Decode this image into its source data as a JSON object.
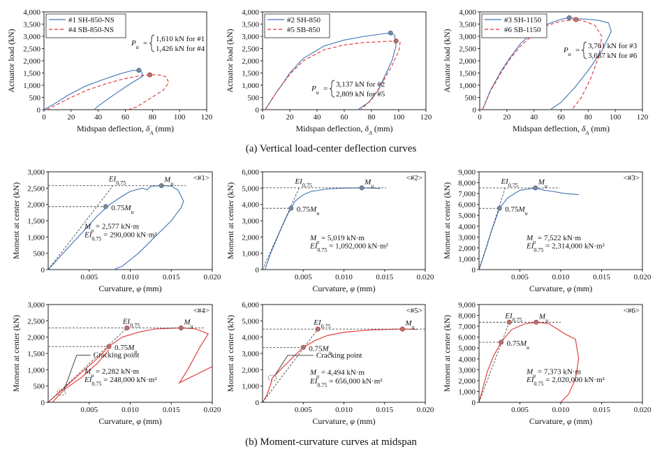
{
  "captions": {
    "a": "(a) Vertical load-center deflection curves",
    "b": "(b) Moment-curvature curves at midspan"
  },
  "colors": {
    "blue": "#3f72b4",
    "red": "#e03030"
  },
  "chart_data": [
    {
      "type": "line",
      "xlabel_main": "Midspan deflection, ",
      "xlabel_sym": "δ",
      "xlabel_sub": "A",
      "xlabel_unit": " (mm)",
      "ylabel": "Actuator load (kN)",
      "xlim": [
        0,
        120
      ],
      "ylim": [
        0,
        4000
      ],
      "xticks": [
        "0",
        "20",
        "40",
        "60",
        "80",
        "100",
        "120"
      ],
      "yticks": [
        "0",
        "500",
        "1,000",
        "1,500",
        "2,000",
        "2,500",
        "3,000",
        "3,500",
        "4,000"
      ],
      "legend": [
        "#1 SH-850-NS",
        "#4 SB-850-NS"
      ],
      "pu_label": "P",
      "pu_sub": "u",
      "pu_lines": [
        "1,610 kN for #1",
        "1,426 kN for #4"
      ],
      "series": [
        {
          "name": "#1 SH-850-NS",
          "color": "blue",
          "dash": false,
          "x": [
            0,
            8,
            18,
            30,
            42,
            55,
            65,
            70,
            72,
            73,
            62,
            50,
            40,
            37
          ],
          "y": [
            0,
            250,
            600,
            950,
            1200,
            1450,
            1600,
            1610,
            1550,
            1380,
            1000,
            550,
            150,
            0
          ],
          "marker": [
            70,
            1610
          ]
        },
        {
          "name": "#4 SB-850-NS",
          "color": "red",
          "dash": true,
          "x": [
            2,
            10,
            20,
            32,
            45,
            58,
            70,
            78,
            85,
            90,
            92,
            88,
            78,
            68,
            62
          ],
          "y": [
            0,
            220,
            500,
            800,
            1050,
            1250,
            1380,
            1426,
            1420,
            1350,
            1100,
            800,
            450,
            100,
            0
          ],
          "marker": [
            78,
            1426
          ]
        }
      ]
    },
    {
      "type": "line",
      "xlabel_main": "Midspan deflection, ",
      "xlabel_sym": "δ",
      "xlabel_sub": "A",
      "xlabel_unit": " (mm)",
      "ylabel": "Actuator load (kN)",
      "xlim": [
        0,
        120
      ],
      "ylim": [
        0,
        4000
      ],
      "xticks": [
        "0",
        "20",
        "40",
        "60",
        "80",
        "100",
        "120"
      ],
      "yticks": [
        "0",
        "500",
        "1,000",
        "1,500",
        "2,000",
        "2,500",
        "3,000",
        "3,500",
        "4,000"
      ],
      "legend": [
        "#2 SH-850",
        "#5 SB-850"
      ],
      "pu_label": "P",
      "pu_sub": "u",
      "pu_lines": [
        "3,137 kN for #2",
        "2,809 kN for #5"
      ],
      "series": [
        {
          "name": "#2 SH-850",
          "color": "blue",
          "dash": false,
          "x": [
            2,
            6,
            10,
            14,
            20,
            30,
            45,
            60,
            75,
            88,
            94,
            97,
            98,
            95,
            90,
            85,
            78,
            70
          ],
          "y": [
            0,
            350,
            700,
            1000,
            1500,
            2100,
            2600,
            2850,
            3000,
            3100,
            3137,
            3050,
            2600,
            2000,
            1400,
            800,
            300,
            0
          ],
          "marker": [
            94,
            3137
          ]
        },
        {
          "name": "#5 SB-850",
          "color": "red",
          "dash": true,
          "x": [
            2,
            6,
            10,
            14,
            20,
            30,
            45,
            60,
            75,
            90,
            98,
            101,
            100,
            95,
            88,
            80,
            72
          ],
          "y": [
            0,
            350,
            700,
            1000,
            1450,
            2000,
            2450,
            2650,
            2750,
            2790,
            2809,
            2750,
            2400,
            1800,
            1100,
            400,
            0
          ],
          "marker": [
            98,
            2809
          ]
        }
      ]
    },
    {
      "type": "line",
      "xlabel_main": "Midspan deflection, ",
      "xlabel_sym": "δ",
      "xlabel_sub": "A",
      "xlabel_unit": " (mm)",
      "ylabel": "Actuator load (kN)",
      "xlim": [
        0,
        120
      ],
      "ylim": [
        0,
        4000
      ],
      "xticks": [
        "0",
        "20",
        "40",
        "60",
        "80",
        "100",
        "120"
      ],
      "yticks": [
        "0",
        "500",
        "1,000",
        "1,500",
        "2,000",
        "2,500",
        "3,000",
        "3,500",
        "4,000"
      ],
      "legend": [
        "#3 SH-1150",
        "#6 SB-1150"
      ],
      "pu_label": "P",
      "pu_sub": "u",
      "pu_lines": [
        "3,761 kN for #3",
        "3,687 kN for #6"
      ],
      "series": [
        {
          "name": "#3 SH-1150",
          "color": "blue",
          "dash": false,
          "x": [
            2,
            5,
            8,
            12,
            16,
            22,
            30,
            40,
            50,
            60,
            66,
            72,
            80,
            88,
            95,
            97,
            90,
            80,
            70,
            60,
            52
          ],
          "y": [
            0,
            400,
            800,
            1200,
            1600,
            2100,
            2700,
            3200,
            3500,
            3700,
            3761,
            3720,
            3700,
            3650,
            3550,
            3200,
            2400,
            1600,
            900,
            300,
            0
          ],
          "marker": [
            66,
            3761
          ]
        },
        {
          "name": "#6 SB-1150",
          "color": "red",
          "dash": true,
          "x": [
            2,
            5,
            8,
            12,
            16,
            22,
            30,
            40,
            50,
            60,
            71,
            78,
            85,
            90,
            88,
            82,
            75,
            68
          ],
          "y": [
            0,
            380,
            780,
            1150,
            1550,
            2050,
            2600,
            3100,
            3450,
            3620,
            3687,
            3600,
            3450,
            3000,
            2200,
            1300,
            500,
            0
          ],
          "marker": [
            71,
            3687
          ]
        }
      ]
    },
    {
      "type": "line",
      "id": "#1",
      "xlabel_main": "Curvature, ",
      "xlabel_sym": "φ",
      "xlabel_unit": " (mm)",
      "ylabel": "Moment at center (kN)",
      "xlim": [
        0,
        0.02
      ],
      "ylim": [
        0,
        3000
      ],
      "xticks": [
        "0.005",
        "0.010",
        "0.015",
        "0.020"
      ],
      "yticks": [
        "0",
        "500",
        "1,000",
        "1,500",
        "2,000",
        "2,500",
        "3,000"
      ],
      "mu_value": 2577,
      "mu75_value": 1933,
      "mu_x": 0.0138,
      "mu75_x": 0.007,
      "ei_x": 0.0079,
      "mu_text": "M",
      "mu_text_sub": "u",
      "ei_text": "EI",
      "ei_sub": "0.75",
      "mu75_text": "0.75M",
      "mu75_sub": "u",
      "info": [
        "M_u = 2,577 kN·m",
        "EI_0.75 = 290,000 kN·m²"
      ],
      "info_mu": "2,577 kN·m",
      "info_ei": "290,000 kN·m²",
      "info_y": [
        1250,
        1000
      ],
      "series": [
        {
          "color": "blue",
          "x": [
            0,
            0.002,
            0.004,
            0.006,
            0.0075,
            0.009,
            0.01,
            0.0115,
            0.012,
            0.0125,
            0.0132,
            0.0138,
            0.015,
            0.0158,
            0.0165,
            0.0162,
            0.015,
            0.013,
            0.011,
            0.009,
            0.008
          ],
          "y": [
            0,
            550,
            1100,
            1650,
            2000,
            2250,
            2400,
            2500,
            2450,
            2550,
            2570,
            2577,
            2560,
            2450,
            2100,
            1900,
            1500,
            1000,
            500,
            100,
            0
          ]
        }
      ]
    },
    {
      "type": "line",
      "id": "#2",
      "xlabel_main": "Curvature, ",
      "xlabel_sym": "φ",
      "xlabel_unit": " (mm)",
      "ylabel": "Moment at center (kN)",
      "xlim": [
        0,
        0.02
      ],
      "ylim": [
        0,
        6000
      ],
      "xticks": [
        "0.005",
        "0.010",
        "0.015",
        "0.020"
      ],
      "yticks": [
        "0",
        "1,000",
        "2,000",
        "3,000",
        "4,000",
        "5,000",
        "6,000"
      ],
      "mu_value": 5019,
      "mu75_value": 3764,
      "mu_x": 0.0122,
      "mu75_x": 0.0035,
      "ei_x": 0.0045,
      "mu_text": "M",
      "mu_text_sub": "u",
      "ei_text": "EI",
      "ei_sub": "0.75",
      "mu75_text": "0.75M",
      "mu75_sub": "u",
      "info_mu": "5,019 kN·m",
      "info_ei": "1,092,000 kN·m²",
      "info_y": [
        1800,
        1300
      ],
      "series": [
        {
          "color": "blue",
          "x": [
            0.0003,
            0.001,
            0.002,
            0.003,
            0.0035,
            0.004,
            0.005,
            0.006,
            0.008,
            0.01,
            0.0122,
            0.0135,
            0.0145
          ],
          "y": [
            0,
            1000,
            2200,
            3300,
            3764,
            4200,
            4600,
            4800,
            4950,
            5000,
            5019,
            5000,
            4980
          ]
        }
      ]
    },
    {
      "type": "line",
      "id": "#3",
      "xlabel_main": "Curvature, ",
      "xlabel_sym": "φ",
      "xlabel_unit": " (mm)",
      "ylabel": "Moment at center (kN)",
      "xlim": [
        0,
        0.02
      ],
      "ylim": [
        0,
        9000
      ],
      "xticks": [
        "0.005",
        "0.010",
        "0.015",
        "0.020"
      ],
      "yticks": [
        "0",
        "1,000",
        "2,000",
        "3,000",
        "4,000",
        "5,000",
        "6,000",
        "7,000",
        "8,000",
        "9,000"
      ],
      "mu_value": 7522,
      "mu75_value": 5642,
      "mu_x": 0.0069,
      "mu75_x": 0.0025,
      "ei_x": 0.0032,
      "mu_text": "M",
      "mu_text_sub": "u",
      "ei_text": "EI",
      "ei_sub": "0.75",
      "mu75_text": "0.75M",
      "mu75_sub": "u",
      "info_mu": "7,522 kN·m",
      "info_ei": "2,314,000 kN·m²",
      "info_y": [
        2700,
        1950
      ],
      "series": [
        {
          "color": "blue",
          "x": [
            0,
            0.0008,
            0.0015,
            0.0025,
            0.0035,
            0.005,
            0.0069,
            0.008,
            0.009,
            0.0105,
            0.0122
          ],
          "y": [
            0,
            1800,
            3500,
            5642,
            6600,
            7300,
            7522,
            7300,
            7200,
            7000,
            6900
          ]
        }
      ]
    },
    {
      "type": "line",
      "id": "#4",
      "xlabel_main": "Curvature, ",
      "xlabel_sym": "φ",
      "xlabel_unit": " (mm)",
      "ylabel": "Moment at center (kN)",
      "xlim": [
        0,
        0.02
      ],
      "ylim": [
        0,
        3000
      ],
      "xticks": [
        "0.005",
        "0.010",
        "0.015",
        "0.020"
      ],
      "yticks": [
        "0",
        "500",
        "1,000",
        "1,500",
        "2,000",
        "2,500",
        "3,000"
      ],
      "mu_value": 2282,
      "mu75_value": 1711,
      "mu_x": 0.0162,
      "mu75_x": 0.0074,
      "ei_x": 0.0096,
      "mu_text": "M",
      "mu_text_sub": "u",
      "ei_text": "EI",
      "ei_sub": "0.75",
      "mu75_text": "0.75M",
      "mu75_sub": "u",
      "cracking": "Cracking point",
      "crack_pt": [
        0.0016,
        300
      ],
      "crack_lbl": [
        0.0055,
        1380
      ],
      "info_mu": "2,282 kN·m",
      "info_ei": "248,000 kN·m²",
      "info_y": [
        880,
        620
      ],
      "series": [
        {
          "color": "red",
          "x": [
            0,
            0.002,
            0.004,
            0.006,
            0.0074,
            0.009,
            0.011,
            0.013,
            0.0162,
            0.018,
            0.0195,
            0.0185,
            0.017,
            0.016,
            0.02
          ],
          "y": [
            0,
            450,
            900,
            1350,
            1711,
            2000,
            2150,
            2250,
            2282,
            2250,
            2100,
            1700,
            1000,
            600,
            1100
          ]
        },
        {
          "color": "red",
          "x": [
            0.0005,
            0.002,
            0.004,
            0.006,
            0.0074
          ],
          "y": [
            0,
            400,
            750,
            1200,
            1600
          ]
        }
      ]
    },
    {
      "type": "line",
      "id": "#5",
      "xlabel_main": "Curvature, ",
      "xlabel_sym": "φ",
      "xlabel_unit": " (mm)",
      "ylabel": "Moment at center (kN)",
      "xlim": [
        0,
        0.02
      ],
      "ylim": [
        0,
        6000
      ],
      "xticks": [
        "0.005",
        "0.010",
        "0.015",
        "0.020"
      ],
      "yticks": [
        "0",
        "1,000",
        "2,000",
        "3,000",
        "4,000",
        "5,000",
        "6,000"
      ],
      "mu_value": 4494,
      "mu75_value": 3370,
      "mu_x": 0.0172,
      "mu75_x": 0.005,
      "ei_x": 0.0068,
      "mu_text": "M",
      "mu_text_sub": "u",
      "ei_text": "EI",
      "ei_sub": "0.75",
      "mu75_text": "0.75M",
      "mu75_sub": "u",
      "cracking": "Cracking point",
      "crack_pt": [
        0.0012,
        1500
      ],
      "crack_lbl": [
        0.0066,
        2750
      ],
      "info_mu": "4,494 kN·m",
      "info_ei": "656,000 kN·m²",
      "info_y": [
        1700,
        1150
      ],
      "series": [
        {
          "color": "red",
          "x": [
            0,
            0.0005,
            0.001,
            0.0012,
            0.002,
            0.003,
            0.004,
            0.005,
            0.0065,
            0.008,
            0.01,
            0.0135,
            0.0172,
            0.019
          ],
          "y": [
            0,
            400,
            1100,
            1500,
            1900,
            2400,
            2900,
            3370,
            3800,
            4100,
            4300,
            4450,
            4494,
            4480
          ]
        }
      ]
    },
    {
      "type": "line",
      "id": "#6",
      "xlabel_main": "Curvature, ",
      "xlabel_sym": "φ",
      "xlabel_unit": " (mm)",
      "ylabel": "Moment at center (kN)",
      "xlim": [
        0,
        0.02
      ],
      "ylim": [
        0,
        9000
      ],
      "xticks": [
        "0.005",
        "0.010",
        "0.015",
        "0.020"
      ],
      "yticks": [
        "0",
        "1,000",
        "2,000",
        "3,000",
        "4,000",
        "5,000",
        "6,000",
        "7,000",
        "8,000",
        "9,000"
      ],
      "mu_value": 7373,
      "mu75_value": 5530,
      "mu_x": 0.007,
      "mu75_x": 0.0027,
      "ei_x": 0.0037,
      "mu_text": "M",
      "mu_text_sub": "u",
      "ei_text": "EI",
      "ei_sub": "0.75",
      "mu75_text": "0.75M",
      "mu75_sub": "u",
      "info_mu": "7,373 kN·m",
      "info_ei": "2,020,000 kN·m²",
      "info_y": [
        2600,
        1850
      ],
      "series": [
        {
          "color": "red",
          "x": [
            0,
            0.0005,
            0.001,
            0.0018,
            0.0027,
            0.004,
            0.0055,
            0.007,
            0.0085,
            0.0105,
            0.0118,
            0.0122,
            0.0118,
            0.011,
            0.01
          ],
          "y": [
            0,
            1400,
            2800,
            4300,
            5530,
            6700,
            7200,
            7373,
            7250,
            6300,
            5800,
            4000,
            2200,
            800,
            0
          ]
        }
      ]
    }
  ]
}
